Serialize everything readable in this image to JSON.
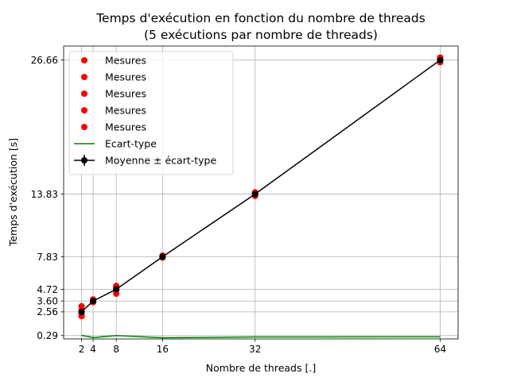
{
  "chart_data": {
    "type": "scatter",
    "title": "Temps d'exécution en fonction du nombre de threads",
    "subtitle": "(5 exécutions par nombre de threads)",
    "xlabel": "Nombre de threads [.]",
    "ylabel": "Temps d'exécution [s]",
    "x_ticks": [
      2,
      4,
      8,
      16,
      32,
      64
    ],
    "y_ticks": [
      0.29,
      2.56,
      3.6,
      4.72,
      7.83,
      13.83,
      26.66
    ],
    "y_tick_labels": [
      "0.29",
      "2.56",
      "3.60",
      "4.72",
      "7.83",
      "13.83",
      "26.66"
    ],
    "xlim": [
      -1.1,
      67.1
    ],
    "ylim": [
      -0.03,
      28.0
    ],
    "grid": true,
    "legend_position": "top-left",
    "colors": {
      "measures": "#ff0000",
      "std": "#008000",
      "mean": "#000000",
      "grid": "#b0b0b0"
    },
    "series": [
      {
        "name": "Mesures",
        "kind": "points",
        "color": "#ff0000",
        "x": [
          2,
          4,
          8,
          16,
          32,
          64
        ],
        "values": [
          2.15,
          3.5,
          4.3,
          7.85,
          13.65,
          26.65
        ]
      },
      {
        "name": "Mesures",
        "kind": "points",
        "color": "#ff0000",
        "x": [
          2,
          4,
          8,
          16,
          32,
          64
        ],
        "values": [
          2.35,
          3.6,
          4.9,
          7.75,
          13.75,
          26.45
        ]
      },
      {
        "name": "Mesures",
        "kind": "points",
        "color": "#ff0000",
        "x": [
          2,
          4,
          8,
          16,
          32,
          64
        ],
        "values": [
          2.5,
          3.65,
          5.05,
          7.95,
          13.9,
          26.9
        ]
      },
      {
        "name": "Mesures",
        "kind": "points",
        "color": "#ff0000",
        "x": [
          2,
          4,
          8,
          16,
          32,
          64
        ],
        "values": [
          2.7,
          3.75,
          4.65,
          7.8,
          13.95,
          26.6
        ]
      },
      {
        "name": "Mesures",
        "kind": "points",
        "color": "#ff0000",
        "x": [
          2,
          4,
          8,
          16,
          32,
          64
        ],
        "values": [
          3.1,
          3.5,
          4.75,
          7.9,
          14.0,
          26.75
        ]
      },
      {
        "name": "Ecart-type",
        "kind": "line",
        "color": "#008000",
        "x": [
          2,
          4,
          8,
          16,
          32,
          64
        ],
        "values": [
          0.31,
          0.1,
          0.29,
          0.08,
          0.16,
          0.17
        ]
      },
      {
        "name": "Moyenne ± écart-type",
        "kind": "errorbar",
        "color": "#000000",
        "x": [
          2,
          4,
          8,
          16,
          32,
          64
        ],
        "values": [
          2.56,
          3.6,
          4.72,
          7.83,
          13.83,
          26.66
        ],
        "errors": [
          0.31,
          0.1,
          0.29,
          0.08,
          0.16,
          0.17
        ]
      }
    ]
  }
}
